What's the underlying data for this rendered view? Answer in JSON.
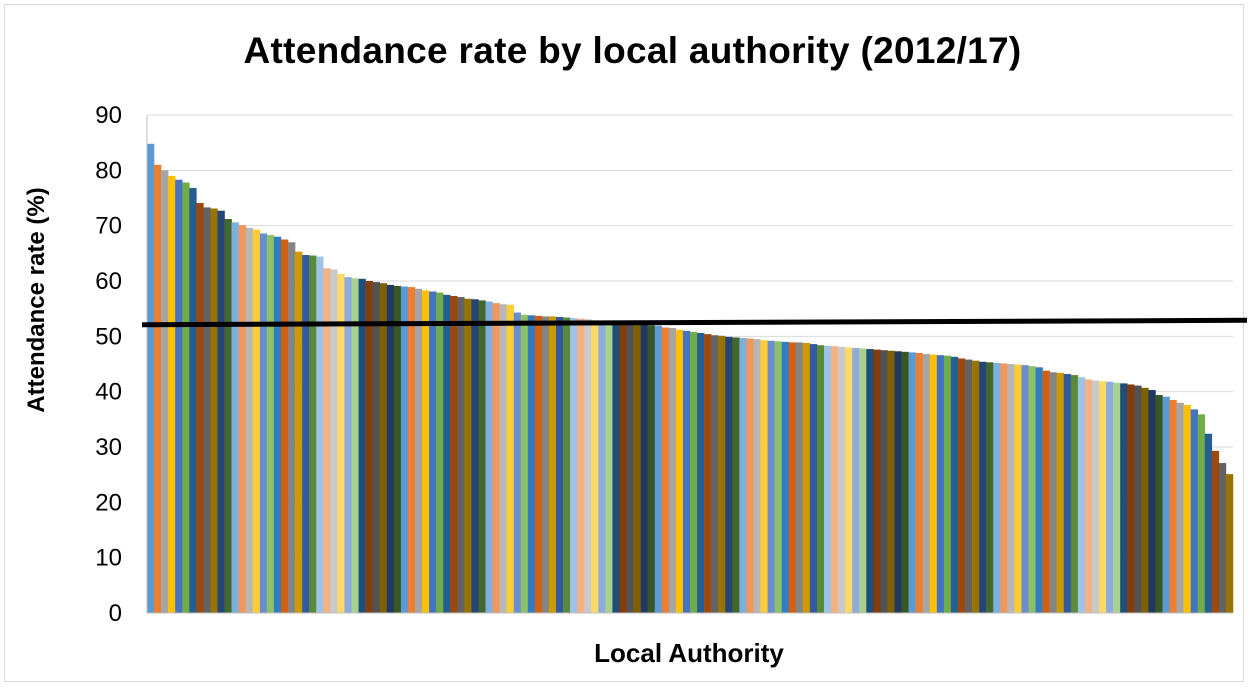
{
  "chart_data": {
    "type": "bar",
    "title": "Attendance rate by local authority (2012/17)",
    "xlabel": "Local Authority",
    "ylabel": "Attendance rate (%)",
    "ylim": [
      0,
      90
    ],
    "yticks": [
      0,
      10,
      20,
      30,
      40,
      50,
      60,
      70,
      80,
      90
    ],
    "grid": true,
    "legend": "none",
    "sorted": "descending",
    "reference_line": {
      "value_start": 52.1,
      "value_end": 52.9
    },
    "palette": [
      "#5b9bd5",
      "#ed7d31",
      "#a5a5a5",
      "#ffc000",
      "#4472c4",
      "#70ad47",
      "#255e91",
      "#9e480e",
      "#636363",
      "#997300",
      "#264478",
      "#43682b",
      "#7cafdd",
      "#f1975a",
      "#b7b7b7",
      "#ffcd33",
      "#698ed0",
      "#8cc168",
      "#327dc2",
      "#d26012",
      "#848484",
      "#cc9a00",
      "#335aa1",
      "#5a8a39",
      "#9dc3e6",
      "#f4b183",
      "#c9c9c9",
      "#ffd966",
      "#8faadc",
      "#a9d18e",
      "#1f4e79",
      "#843c0c",
      "#525252",
      "#7f6000",
      "#203864",
      "#385723"
    ],
    "values": [
      84.8,
      81.0,
      80.0,
      79.0,
      78.3,
      77.8,
      76.8,
      74.1,
      73.3,
      73.1,
      72.7,
      71.2,
      70.6,
      70.1,
      69.6,
      69.3,
      68.6,
      68.3,
      68.0,
      67.5,
      67.0,
      65.3,
      64.7,
      64.6,
      64.4,
      62.3,
      62.1,
      61.3,
      60.7,
      60.5,
      60.4,
      60.0,
      59.8,
      59.6,
      59.3,
      59.1,
      59.0,
      58.9,
      58.6,
      58.3,
      58.1,
      57.9,
      57.5,
      57.3,
      57.1,
      56.8,
      56.7,
      56.5,
      56.3,
      56.0,
      55.8,
      55.7,
      54.3,
      53.9,
      53.8,
      53.7,
      53.6,
      53.6,
      53.5,
      53.4,
      53.3,
      53.2,
      53.1,
      52.9,
      52.8,
      52.7,
      52.6,
      52.5,
      52.3,
      52.2,
      52.1,
      52.0,
      51.9,
      51.6,
      51.5,
      51.2,
      51.0,
      50.8,
      50.6,
      50.4,
      50.2,
      50.1,
      49.9,
      49.8,
      49.7,
      49.6,
      49.5,
      49.3,
      49.2,
      49.1,
      49.0,
      48.9,
      48.9,
      48.8,
      48.6,
      48.4,
      48.3,
      48.2,
      48.1,
      48.0,
      47.9,
      47.8,
      47.7,
      47.6,
      47.5,
      47.4,
      47.3,
      47.2,
      47.1,
      47.0,
      46.8,
      46.7,
      46.6,
      46.5,
      46.3,
      46.0,
      45.8,
      45.6,
      45.4,
      45.3,
      45.2,
      45.1,
      45.0,
      44.9,
      44.8,
      44.6,
      44.4,
      43.8,
      43.5,
      43.4,
      43.2,
      43.0,
      42.6,
      42.2,
      42.0,
      41.9,
      41.8,
      41.6,
      41.5,
      41.3,
      41.1,
      40.7,
      40.3,
      39.4,
      39.1,
      38.5,
      38.0,
      37.6,
      36.8,
      35.9,
      32.4,
      29.3,
      27.1,
      25.1
    ]
  }
}
